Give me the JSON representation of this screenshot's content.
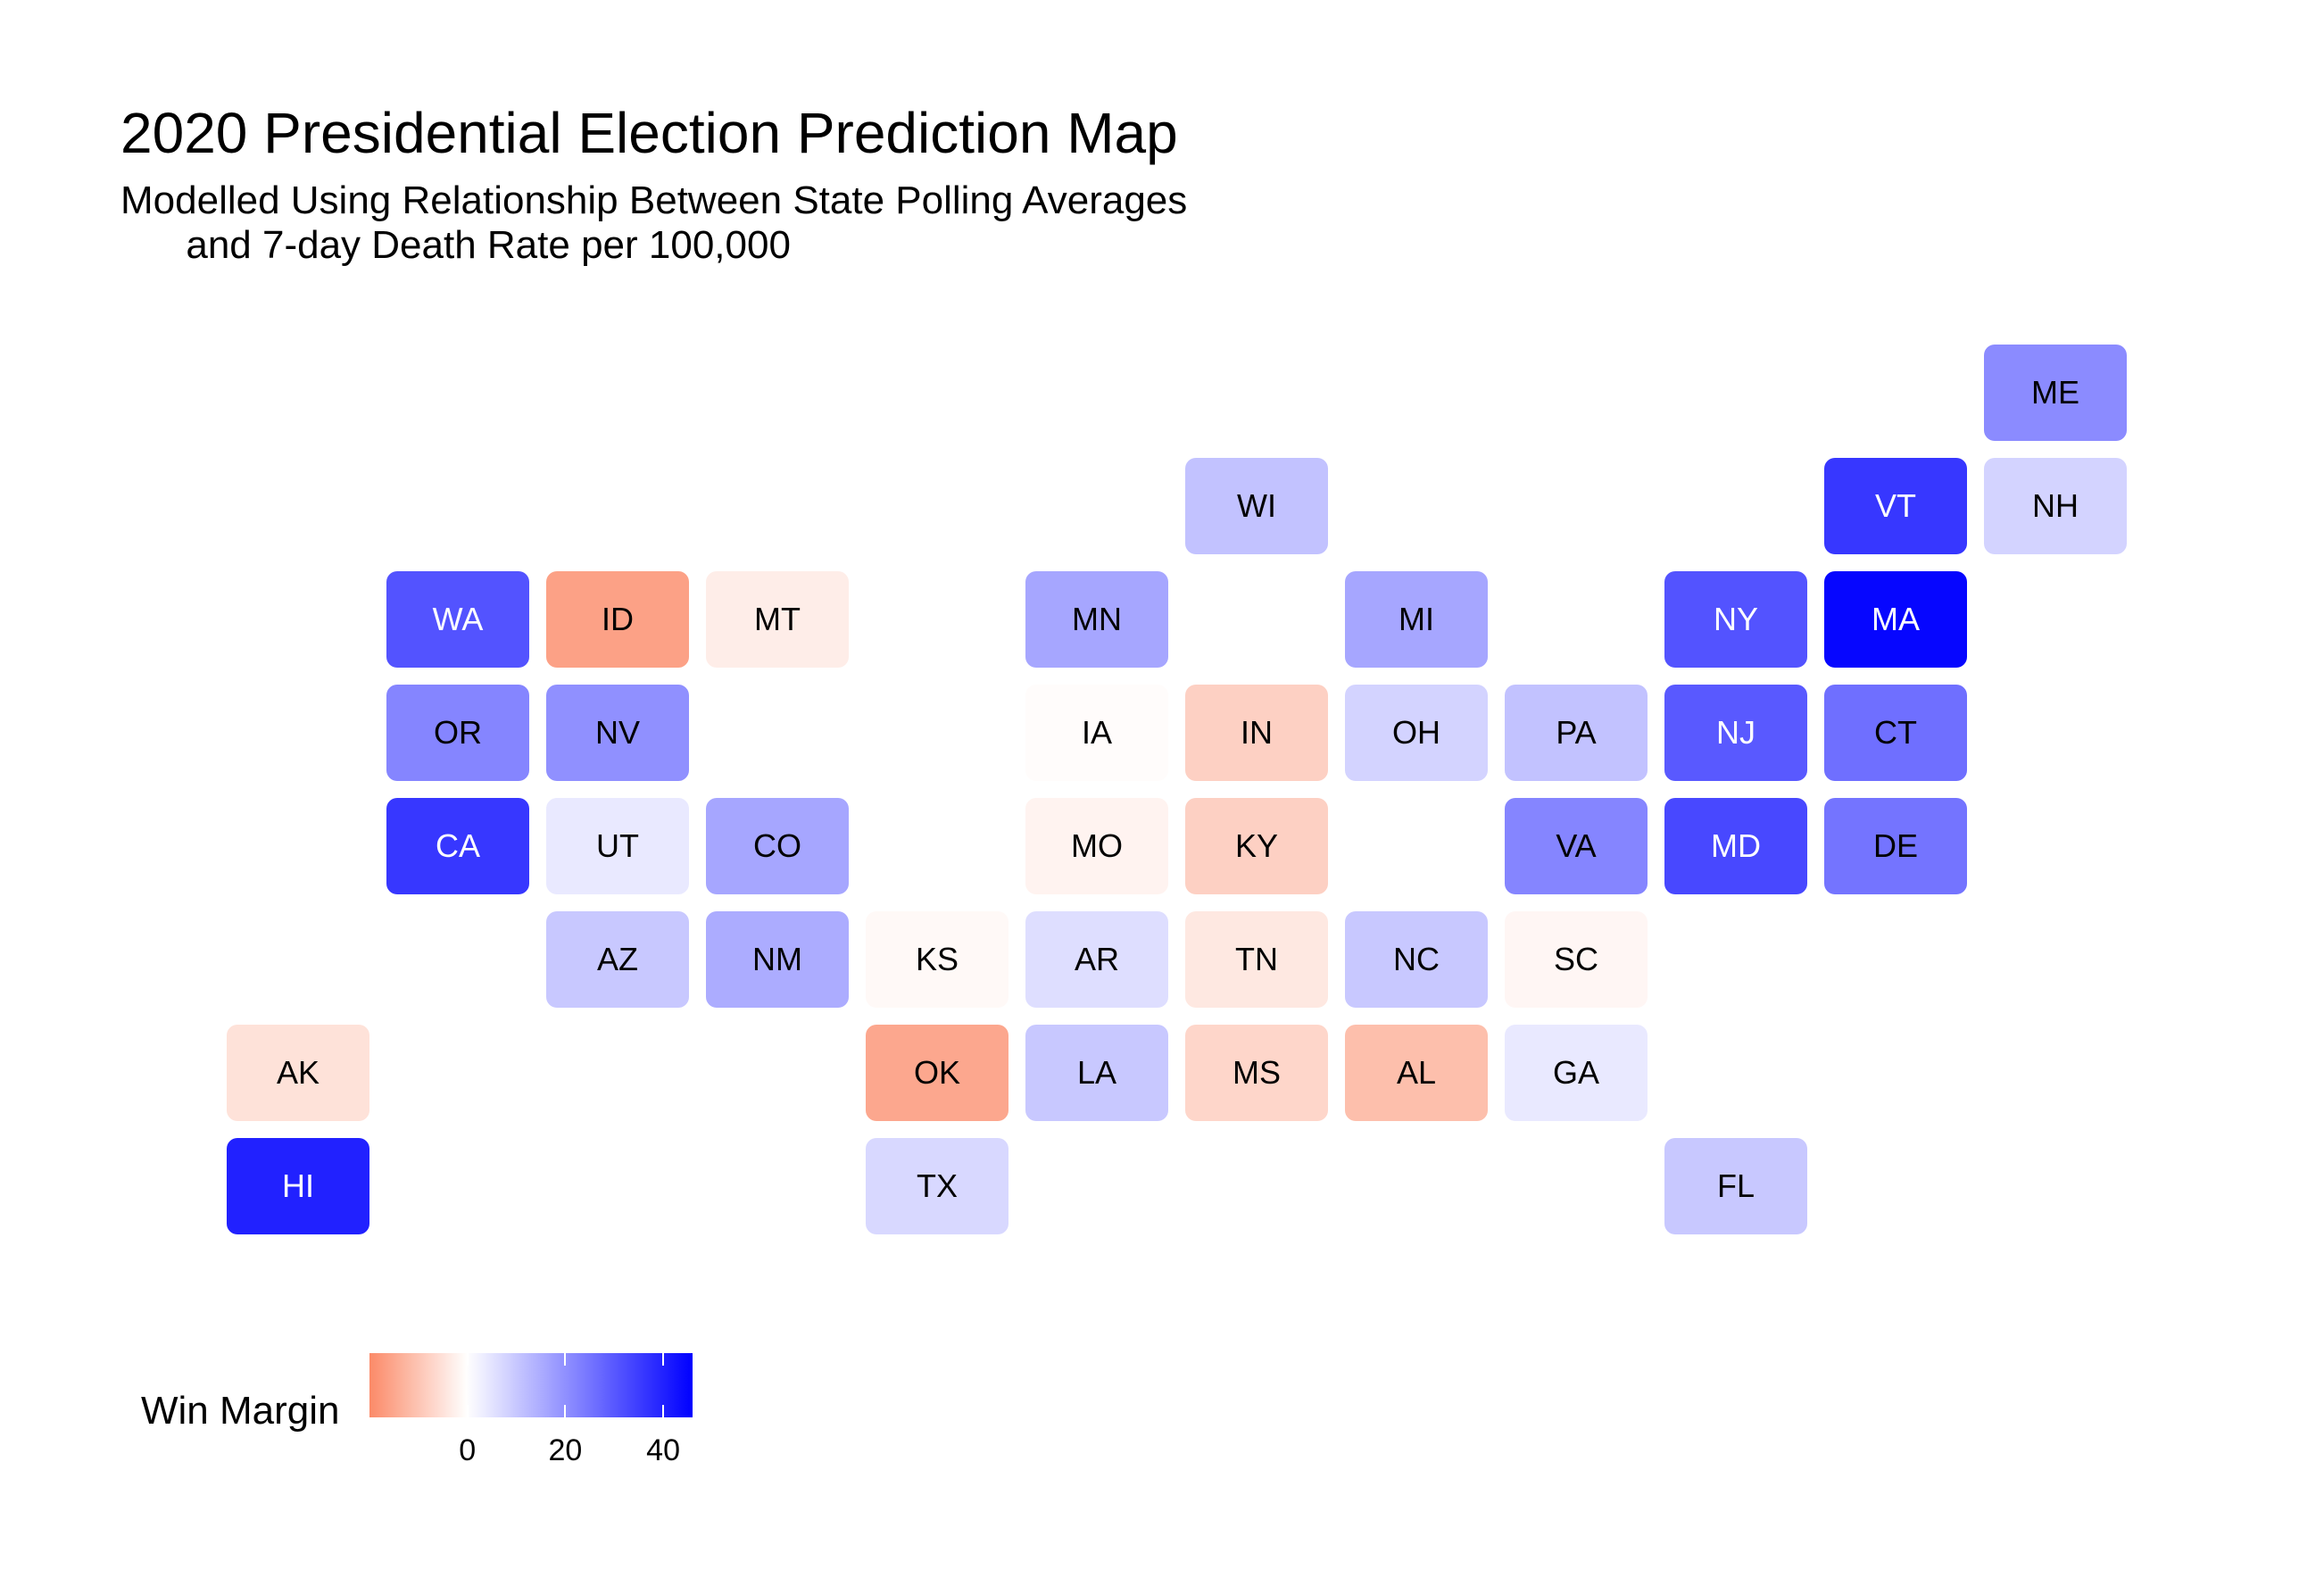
{
  "title": "2020 Presidential Election Prediction Map",
  "subtitle": "Modelled Using Relationship Between State Polling Averages\n      and 7-day Death Rate per 100,000",
  "legend": {
    "title": "Win Margin",
    "ticks": [
      "0",
      "20",
      "40"
    ],
    "tick_values": [
      0,
      20,
      40
    ],
    "range": [
      -20,
      46
    ],
    "colors": {
      "low": "#fb8a68",
      "mid": "#ffffff",
      "high": "#0000ff"
    }
  },
  "chart_data": {
    "type": "tile-grid map",
    "value_label": "Win Margin",
    "states": [
      {
        "abbr": "ME",
        "col": 11,
        "row": 0,
        "margin": 21
      },
      {
        "abbr": "WI",
        "col": 6,
        "row": 1,
        "margin": 11
      },
      {
        "abbr": "VT",
        "col": 10,
        "row": 1,
        "margin": 36
      },
      {
        "abbr": "NH",
        "col": 11,
        "row": 1,
        "margin": 8
      },
      {
        "abbr": "WA",
        "col": 1,
        "row": 2,
        "margin": 31
      },
      {
        "abbr": "ID",
        "col": 2,
        "row": 2,
        "margin": -16
      },
      {
        "abbr": "MT",
        "col": 3,
        "row": 2,
        "margin": -3
      },
      {
        "abbr": "MN",
        "col": 5,
        "row": 2,
        "margin": 16
      },
      {
        "abbr": "MI",
        "col": 7,
        "row": 2,
        "margin": 16
      },
      {
        "abbr": "NY",
        "col": 9,
        "row": 2,
        "margin": 31
      },
      {
        "abbr": "MA",
        "col": 10,
        "row": 2,
        "margin": 45
      },
      {
        "abbr": "OR",
        "col": 1,
        "row": 3,
        "margin": 22
      },
      {
        "abbr": "NV",
        "col": 2,
        "row": 3,
        "margin": 20
      },
      {
        "abbr": "IA",
        "col": 5,
        "row": 3,
        "margin": -0.5
      },
      {
        "abbr": "IN",
        "col": 6,
        "row": 3,
        "margin": -8
      },
      {
        "abbr": "OH",
        "col": 7,
        "row": 3,
        "margin": 8
      },
      {
        "abbr": "PA",
        "col": 8,
        "row": 3,
        "margin": 11
      },
      {
        "abbr": "NJ",
        "col": 9,
        "row": 3,
        "margin": 30
      },
      {
        "abbr": "CT",
        "col": 10,
        "row": 3,
        "margin": 26
      },
      {
        "abbr": "CA",
        "col": 1,
        "row": 4,
        "margin": 36
      },
      {
        "abbr": "UT",
        "col": 2,
        "row": 4,
        "margin": 4
      },
      {
        "abbr": "CO",
        "col": 3,
        "row": 4,
        "margin": 16
      },
      {
        "abbr": "MO",
        "col": 5,
        "row": 4,
        "margin": -2
      },
      {
        "abbr": "KY",
        "col": 6,
        "row": 4,
        "margin": -8
      },
      {
        "abbr": "VA",
        "col": 8,
        "row": 4,
        "margin": 22
      },
      {
        "abbr": "MD",
        "col": 9,
        "row": 4,
        "margin": 33
      },
      {
        "abbr": "DE",
        "col": 10,
        "row": 4,
        "margin": 25
      },
      {
        "abbr": "AZ",
        "col": 2,
        "row": 5,
        "margin": 10
      },
      {
        "abbr": "NM",
        "col": 3,
        "row": 5,
        "margin": 15
      },
      {
        "abbr": "KS",
        "col": 4,
        "row": 5,
        "margin": -1
      },
      {
        "abbr": "AR",
        "col": 5,
        "row": 5,
        "margin": 6
      },
      {
        "abbr": "TN",
        "col": 6,
        "row": 5,
        "margin": -4
      },
      {
        "abbr": "NC",
        "col": 7,
        "row": 5,
        "margin": 10
      },
      {
        "abbr": "SC",
        "col": 8,
        "row": 5,
        "margin": -1.5
      },
      {
        "abbr": "AK",
        "col": 0,
        "row": 6,
        "margin": -5
      },
      {
        "abbr": "OK",
        "col": 4,
        "row": 6,
        "margin": -15
      },
      {
        "abbr": "LA",
        "col": 5,
        "row": 6,
        "margin": 10
      },
      {
        "abbr": "MS",
        "col": 6,
        "row": 6,
        "margin": -7
      },
      {
        "abbr": "AL",
        "col": 7,
        "row": 6,
        "margin": -11
      },
      {
        "abbr": "GA",
        "col": 8,
        "row": 6,
        "margin": 4
      },
      {
        "abbr": "HI",
        "col": 0,
        "row": 7,
        "margin": 40
      },
      {
        "abbr": "TX",
        "col": 4,
        "row": 7,
        "margin": 7
      },
      {
        "abbr": "FL",
        "col": 9,
        "row": 7,
        "margin": 10
      }
    ]
  }
}
